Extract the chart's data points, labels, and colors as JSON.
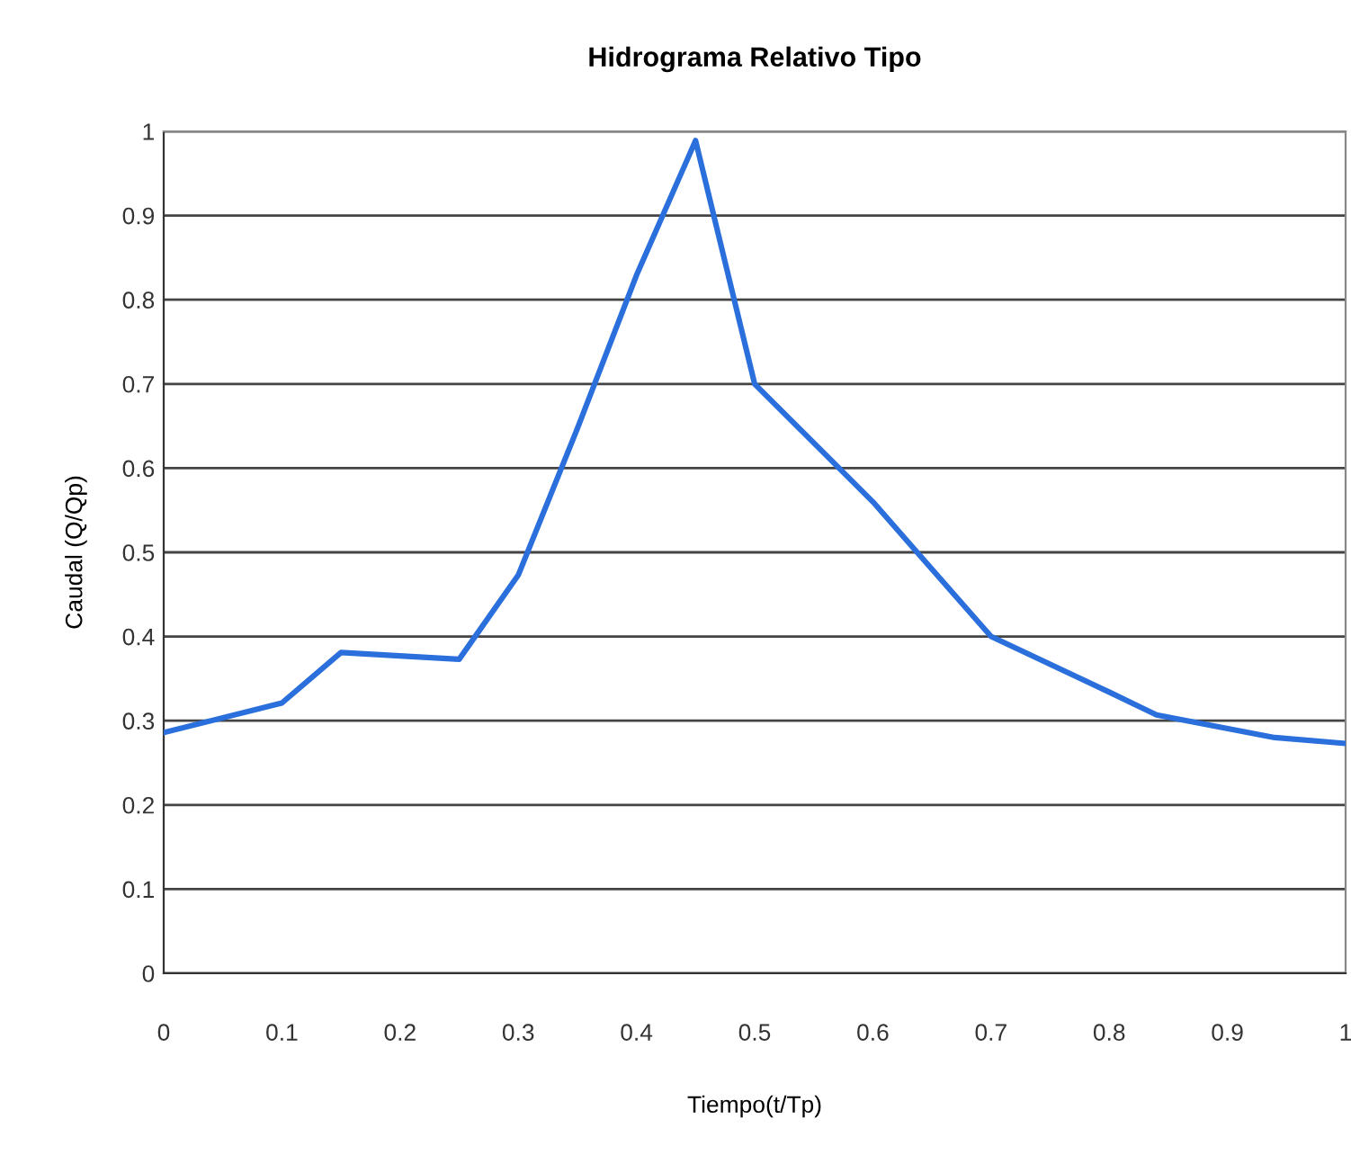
{
  "chart_data": {
    "type": "line",
    "title": "Hidrograma Relativo Tipo",
    "xlabel": "Tiempo(t/Tp)",
    "ylabel": "Caudal (Q/Qp)",
    "x": [
      0,
      0.1,
      0.15,
      0.25,
      0.3,
      0.35,
      0.4,
      0.45,
      0.5,
      0.6,
      0.65,
      0.7,
      0.8,
      0.84,
      0.94,
      1
    ],
    "series": [
      {
        "color": "#2a6fdb",
        "values": [
          0.286,
          0.321,
          0.381,
          0.373,
          0.473,
          0.647,
          0.829,
          0.989,
          0.7,
          0.56,
          0.48,
          0.4,
          0.334,
          0.307,
          0.28,
          0.273
        ]
      }
    ],
    "xlim": [
      0,
      1
    ],
    "ylim": [
      0,
      1
    ],
    "xticks": [
      0,
      0.1,
      0.2,
      0.3,
      0.4,
      0.5,
      0.6,
      0.7,
      0.8,
      0.9,
      1
    ],
    "yticks": [
      0,
      0.1,
      0.2,
      0.3,
      0.4,
      0.5,
      0.6,
      0.7,
      0.8,
      0.9,
      1
    ],
    "grid": "y",
    "legend": false,
    "marker": "none",
    "line_style": "solid"
  }
}
